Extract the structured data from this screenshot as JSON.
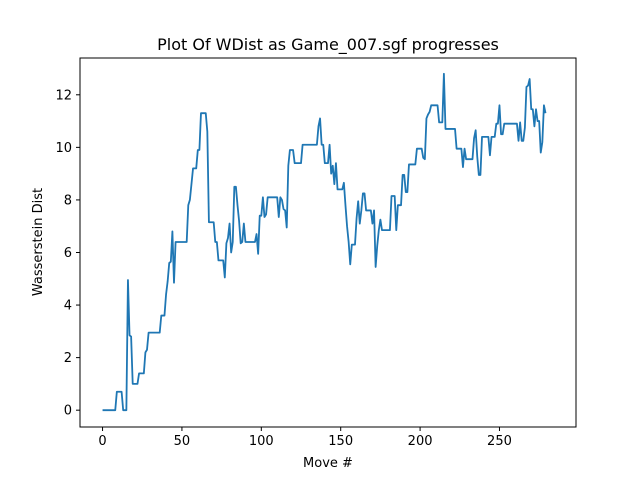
{
  "chart_data": {
    "type": "line",
    "title": "Plot Of WDist as Game_007.sgf progresses",
    "xlabel": "Move #",
    "ylabel": "Wasserstein Dist",
    "xlim": [
      -14.2,
      298.2
    ],
    "ylim": [
      -0.64,
      13.4
    ],
    "xticks": [
      0,
      50,
      100,
      150,
      200,
      250
    ],
    "yticks": [
      0,
      2,
      4,
      6,
      8,
      10,
      12
    ],
    "grid": false,
    "legend": "none",
    "series": [
      {
        "color": "#1f77b4",
        "points": [
          [
            0,
            0.0
          ],
          [
            8,
            0.0
          ],
          [
            9,
            0.7
          ],
          [
            12,
            0.7
          ],
          [
            13,
            0.0
          ],
          [
            15,
            0.0
          ],
          [
            16,
            4.95
          ],
          [
            17,
            2.85
          ],
          [
            18,
            2.8
          ],
          [
            19,
            1.0
          ],
          [
            22,
            1.0
          ],
          [
            23,
            1.4
          ],
          [
            26,
            1.4
          ],
          [
            27,
            2.2
          ],
          [
            28,
            2.3
          ],
          [
            29,
            2.95
          ],
          [
            36,
            2.95
          ],
          [
            37,
            3.6
          ],
          [
            39,
            3.6
          ],
          [
            40,
            4.4
          ],
          [
            41,
            4.9
          ],
          [
            42,
            5.6
          ],
          [
            43,
            5.65
          ],
          [
            44,
            6.8
          ],
          [
            45,
            4.85
          ],
          [
            46,
            6.4
          ],
          [
            53,
            6.4
          ],
          [
            54,
            7.8
          ],
          [
            55,
            8.0
          ],
          [
            56,
            8.6
          ],
          [
            57,
            9.2
          ],
          [
            59,
            9.2
          ],
          [
            60,
            9.9
          ],
          [
            61,
            9.9
          ],
          [
            62,
            11.3
          ],
          [
            65,
            11.3
          ],
          [
            66,
            10.6
          ],
          [
            67,
            7.15
          ],
          [
            70,
            7.15
          ],
          [
            71,
            6.4
          ],
          [
            72,
            6.4
          ],
          [
            73,
            5.7
          ],
          [
            76,
            5.7
          ],
          [
            77,
            5.05
          ],
          [
            78,
            6.35
          ],
          [
            79,
            6.55
          ],
          [
            80,
            7.1
          ],
          [
            81,
            6.0
          ],
          [
            82,
            6.4
          ],
          [
            83,
            8.5
          ],
          [
            84,
            8.5
          ],
          [
            85,
            7.8
          ],
          [
            86,
            7.2
          ],
          [
            87,
            6.35
          ],
          [
            88,
            6.4
          ],
          [
            89,
            7.1
          ],
          [
            90,
            6.4
          ],
          [
            96,
            6.4
          ],
          [
            97,
            6.7
          ],
          [
            98,
            5.95
          ],
          [
            99,
            7.4
          ],
          [
            100,
            7.4
          ],
          [
            101,
            8.1
          ],
          [
            102,
            7.35
          ],
          [
            103,
            7.45
          ],
          [
            104,
            8.1
          ],
          [
            110,
            8.1
          ],
          [
            111,
            7.35
          ],
          [
            112,
            8.1
          ],
          [
            113,
            8.0
          ],
          [
            114,
            7.65
          ],
          [
            115,
            7.6
          ],
          [
            116,
            6.95
          ],
          [
            117,
            9.3
          ],
          [
            118,
            9.9
          ],
          [
            120,
            9.9
          ],
          [
            121,
            9.4
          ],
          [
            125,
            9.4
          ],
          [
            126,
            10.1
          ],
          [
            135,
            10.1
          ],
          [
            136,
            10.8
          ],
          [
            137,
            11.1
          ],
          [
            138,
            10.1
          ],
          [
            139,
            10.1
          ],
          [
            140,
            9.4
          ],
          [
            142,
            9.4
          ],
          [
            143,
            10.1
          ],
          [
            144,
            9.0
          ],
          [
            145,
            9.3
          ],
          [
            146,
            8.6
          ],
          [
            147,
            9.4
          ],
          [
            148,
            8.4
          ],
          [
            151,
            8.4
          ],
          [
            152,
            8.65
          ],
          [
            153,
            7.8
          ],
          [
            154,
            7.0
          ],
          [
            155,
            6.4
          ],
          [
            156,
            5.55
          ],
          [
            157,
            6.3
          ],
          [
            159,
            6.3
          ],
          [
            160,
            7.3
          ],
          [
            161,
            7.95
          ],
          [
            162,
            7.1
          ],
          [
            163,
            7.6
          ],
          [
            164,
            8.25
          ],
          [
            165,
            8.25
          ],
          [
            166,
            7.6
          ],
          [
            169,
            7.6
          ],
          [
            170,
            7.1
          ],
          [
            171,
            7.6
          ],
          [
            172,
            5.45
          ],
          [
            173,
            6.25
          ],
          [
            174,
            6.85
          ],
          [
            175,
            7.25
          ],
          [
            176,
            6.85
          ],
          [
            181,
            6.85
          ],
          [
            182,
            8.15
          ],
          [
            184,
            8.15
          ],
          [
            185,
            6.85
          ],
          [
            186,
            7.8
          ],
          [
            188,
            7.8
          ],
          [
            189,
            8.95
          ],
          [
            190,
            8.95
          ],
          [
            191,
            8.3
          ],
          [
            192,
            8.3
          ],
          [
            193,
            9.35
          ],
          [
            197,
            9.35
          ],
          [
            198,
            9.95
          ],
          [
            201,
            9.95
          ],
          [
            202,
            9.6
          ],
          [
            203,
            9.55
          ],
          [
            204,
            11.1
          ],
          [
            205,
            11.25
          ],
          [
            206,
            11.35
          ],
          [
            207,
            11.6
          ],
          [
            211,
            11.6
          ],
          [
            212,
            10.95
          ],
          [
            214,
            10.95
          ],
          [
            215,
            12.8
          ],
          [
            216,
            10.7
          ],
          [
            222,
            10.7
          ],
          [
            223,
            9.95
          ],
          [
            226,
            9.95
          ],
          [
            227,
            9.25
          ],
          [
            228,
            9.95
          ],
          [
            229,
            9.55
          ],
          [
            233,
            9.55
          ],
          [
            234,
            10.35
          ],
          [
            235,
            10.65
          ],
          [
            236,
            9.65
          ],
          [
            237,
            8.95
          ],
          [
            238,
            8.95
          ],
          [
            239,
            10.4
          ],
          [
            243,
            10.4
          ],
          [
            244,
            9.7
          ],
          [
            245,
            10.4
          ],
          [
            247,
            10.4
          ],
          [
            248,
            10.9
          ],
          [
            249,
            10.9
          ],
          [
            250,
            11.6
          ],
          [
            251,
            10.5
          ],
          [
            252,
            10.5
          ],
          [
            253,
            10.9
          ],
          [
            261,
            10.9
          ],
          [
            262,
            10.25
          ],
          [
            263,
            10.95
          ],
          [
            264,
            10.25
          ],
          [
            265,
            10.25
          ],
          [
            266,
            10.75
          ],
          [
            267,
            12.3
          ],
          [
            268,
            12.35
          ],
          [
            269,
            12.6
          ],
          [
            270,
            11.45
          ],
          [
            271,
            11.45
          ],
          [
            272,
            10.8
          ],
          [
            273,
            11.45
          ],
          [
            274,
            11.0
          ],
          [
            275,
            11.0
          ],
          [
            276,
            9.8
          ],
          [
            277,
            10.2
          ],
          [
            278,
            11.6
          ],
          [
            279,
            11.3
          ]
        ]
      }
    ]
  }
}
